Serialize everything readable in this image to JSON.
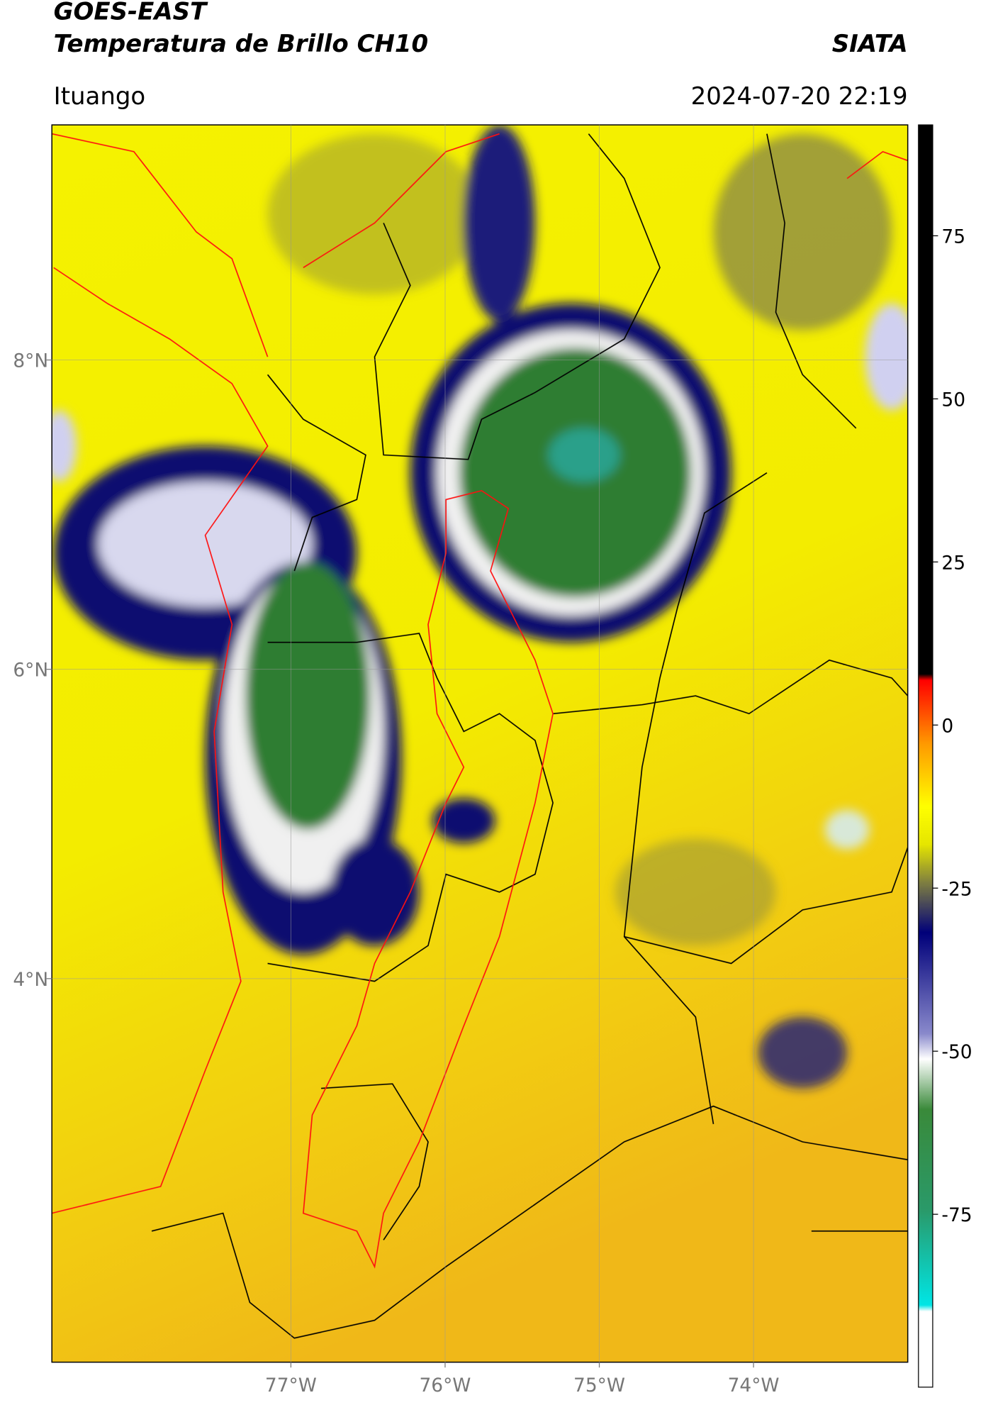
{
  "header": {
    "title": "GOES-EAST",
    "subtitle": "Temperatura de Brillo CH10",
    "source": "SIATA",
    "region": "Ituango",
    "datetime": "2024-07-20 22:19"
  },
  "map": {
    "xlim": [
      -78.55,
      -73.0
    ],
    "ylim": [
      1.52,
      9.52
    ],
    "grid": true,
    "xticks": [
      {
        "value": -77,
        "label": "77°W"
      },
      {
        "value": -76,
        "label": "76°W"
      },
      {
        "value": -75,
        "label": "75°W"
      },
      {
        "value": -74,
        "label": "74°W"
      }
    ],
    "yticks": [
      {
        "value": 8,
        "label": "8°N"
      },
      {
        "value": 6,
        "label": "6°N"
      },
      {
        "value": 4,
        "label": "4°N"
      }
    ]
  },
  "colorbar": {
    "clim": [
      -101.5,
      92
    ],
    "ticks": [
      75,
      50,
      25,
      0,
      -25,
      -50,
      -75
    ]
  }
}
